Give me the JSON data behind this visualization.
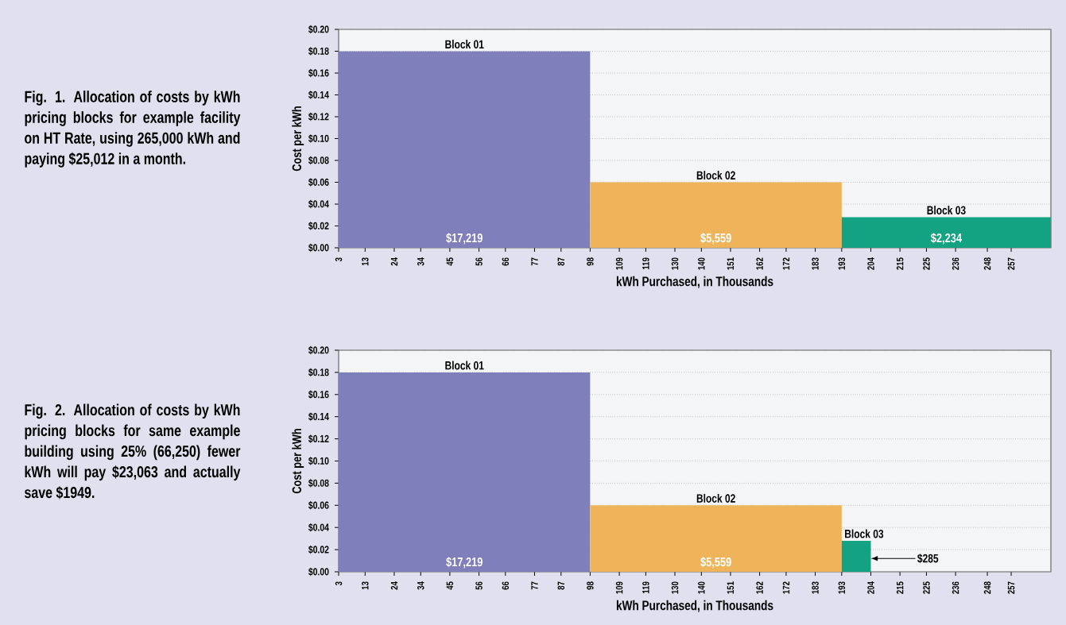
{
  "chart_data": [
    {
      "type": "area",
      "title": "Fig. 1. Allocation of costs by kWh pricing blocks for example facility on HT Rate, using 265,000 kWh and paying $25,012 in a month.",
      "xlabel": "kWh Purchased, in Thousands",
      "ylabel": "Cost per kWh",
      "xlim": [
        3,
        272
      ],
      "ylim": [
        0,
        0.2
      ],
      "grid": "y",
      "xticks": [
        3,
        13,
        24,
        34,
        45,
        56,
        66,
        77,
        87,
        98,
        109,
        119,
        130,
        140,
        151,
        162,
        172,
        183,
        193,
        204,
        215,
        225,
        236,
        248,
        257
      ],
      "yticks": [
        {
          "value": 0,
          "label": "$0.00"
        },
        {
          "value": 0.02,
          "label": "$0.02"
        },
        {
          "value": 0.04,
          "label": "$0.04"
        },
        {
          "value": 0.06,
          "label": "$0.06"
        },
        {
          "value": 0.08,
          "label": "$0.08"
        },
        {
          "value": 0.1,
          "label": "$0.10"
        },
        {
          "value": 0.12,
          "label": "$0.12"
        },
        {
          "value": 0.14,
          "label": "$0.14"
        },
        {
          "value": 0.16,
          "label": "$0.16"
        },
        {
          "value": 0.18,
          "label": "$0.18"
        },
        {
          "value": 0.2,
          "label": "$0.20"
        }
      ],
      "series": [
        {
          "name": "Block 01",
          "color": "#7f80bb",
          "x": [
            3,
            98
          ],
          "values": [
            0.18,
            0.18
          ]
        },
        {
          "name": "Block 02",
          "color": "#efb45a",
          "x": [
            98,
            193
          ],
          "values": [
            0.06,
            0.06
          ]
        },
        {
          "name": "Block 03",
          "color": "#13a383",
          "x": [
            193,
            272
          ],
          "values": [
            0.028,
            0.028
          ]
        }
      ],
      "annotations": [
        "$17,219",
        "$5,559",
        "$2,234"
      ]
    },
    {
      "type": "area",
      "title": "Fig. 2. Allocation of costs by kWh pricing blocks for same example building using 25% (66,250) fewer kWh will pay $23,063 and actually save $1949.",
      "xlabel": "kWh Purchased, in Thousands",
      "ylabel": "Cost per kWh",
      "xlim": [
        3,
        272
      ],
      "ylim": [
        0,
        0.2
      ],
      "grid": "y",
      "xticks": [
        3,
        13,
        24,
        34,
        45,
        56,
        66,
        77,
        87,
        98,
        109,
        119,
        130,
        140,
        151,
        162,
        172,
        183,
        193,
        204,
        215,
        225,
        236,
        248,
        257
      ],
      "yticks": [
        {
          "value": 0,
          "label": "$0.00"
        },
        {
          "value": 0.02,
          "label": "$0.02"
        },
        {
          "value": 0.04,
          "label": "$0.04"
        },
        {
          "value": 0.06,
          "label": "$0.06"
        },
        {
          "value": 0.08,
          "label": "$0.08"
        },
        {
          "value": 0.1,
          "label": "$0.10"
        },
        {
          "value": 0.12,
          "label": "$0.12"
        },
        {
          "value": 0.14,
          "label": "$0.14"
        },
        {
          "value": 0.16,
          "label": "$0.16"
        },
        {
          "value": 0.18,
          "label": "$0.18"
        },
        {
          "value": 0.2,
          "label": "$0.20"
        }
      ],
      "series": [
        {
          "name": "Block 01",
          "color": "#7f80bb",
          "x": [
            3,
            98
          ],
          "values": [
            0.18,
            0.18
          ]
        },
        {
          "name": "Block 02",
          "color": "#efb45a",
          "x": [
            98,
            193
          ],
          "values": [
            0.06,
            0.06
          ]
        },
        {
          "name": "Block 03",
          "color": "#13a383",
          "x": [
            193,
            204
          ],
          "values": [
            0.028,
            0.028
          ]
        }
      ],
      "annotations": [
        "$17,219",
        "$5,559",
        {
          "text": "$285",
          "x": 204,
          "y": 0.012
        }
      ]
    }
  ]
}
